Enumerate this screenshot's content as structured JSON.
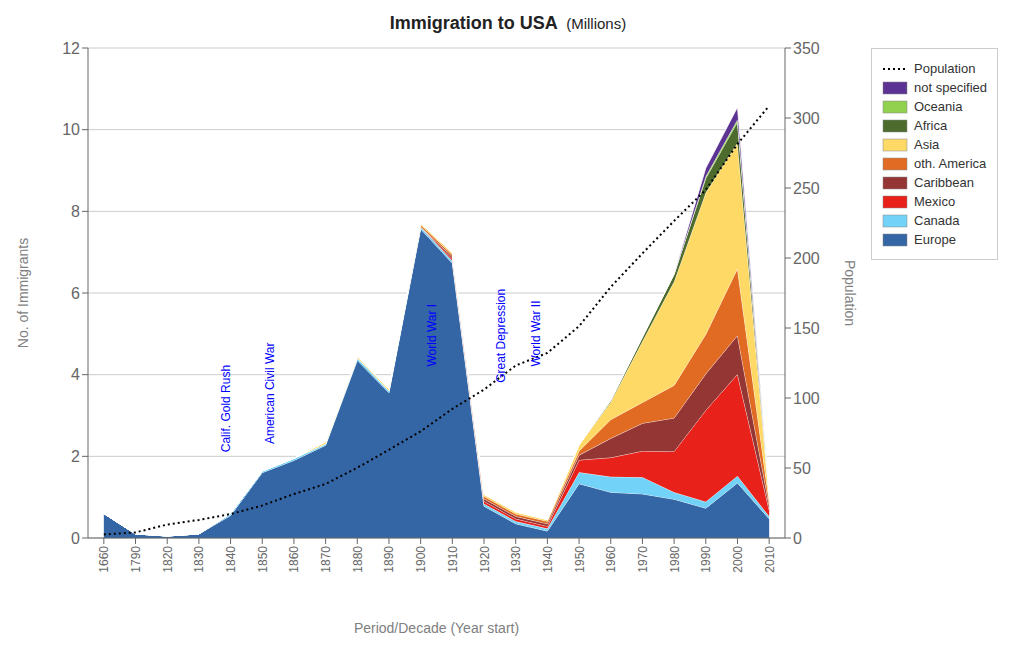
{
  "chart_data": {
    "type": "area",
    "stacked": true,
    "title": "Immigration to USA",
    "subtitle": "(Millions)",
    "xlabel": "Period/Decade (Year start)",
    "ylabel": "No. of Immigrants",
    "y2label": "Population",
    "categories": [
      "1660",
      "1790",
      "1820",
      "1830",
      "1840",
      "1850",
      "1860",
      "1870",
      "1880",
      "1890",
      "1900",
      "1910",
      "1920",
      "1930",
      "1940",
      "1950",
      "1960",
      "1970",
      "1980",
      "1990",
      "2000",
      "2010"
    ],
    "ylim": [
      0,
      12
    ],
    "yticks": [
      0,
      2,
      4,
      6,
      8,
      10,
      12
    ],
    "y2lim": [
      0,
      350
    ],
    "y2ticks": [
      0,
      50,
      100,
      150,
      200,
      250,
      300,
      350
    ],
    "grid": true,
    "legend": "right",
    "series": [
      {
        "name": "Europe",
        "color": "#3465a4",
        "values": [
          0.6,
          0.1,
          0.05,
          0.1,
          0.55,
          1.6,
          1.9,
          2.27,
          4.35,
          3.56,
          7.57,
          6.73,
          0.78,
          0.35,
          0.17,
          1.33,
          1.12,
          1.08,
          0.95,
          0.73,
          1.35,
          0.47
        ]
      },
      {
        "name": "Canada",
        "color": "#73d2f7",
        "values": [
          0.0,
          0.0,
          0.0,
          0.0,
          0.05,
          0.04,
          0.05,
          0.04,
          0.06,
          0.05,
          0.05,
          0.06,
          0.06,
          0.06,
          0.06,
          0.28,
          0.38,
          0.41,
          0.17,
          0.16,
          0.17,
          0.06
        ]
      },
      {
        "name": "Mexico",
        "color": "#e8211a",
        "values": [
          0.0,
          0.0,
          0.0,
          0.0,
          0.0,
          0.0,
          0.0,
          0.0,
          0.0,
          0.0,
          0.0,
          0.05,
          0.06,
          0.06,
          0.06,
          0.3,
          0.47,
          0.64,
          1.0,
          2.24,
          2.49,
          0.16
        ]
      },
      {
        "name": "Caribbean",
        "color": "#943634",
        "values": [
          0.0,
          0.0,
          0.0,
          0.0,
          0.0,
          0.0,
          0.0,
          0.0,
          0.0,
          0.0,
          0.0,
          0.05,
          0.06,
          0.06,
          0.06,
          0.12,
          0.47,
          0.68,
          0.82,
          0.89,
          0.95,
          0.1
        ]
      },
      {
        "name": "oth. America",
        "color": "#e26b24",
        "values": [
          0.0,
          0.0,
          0.0,
          0.0,
          0.0,
          0.0,
          0.0,
          0.0,
          0.0,
          0.0,
          0.05,
          0.05,
          0.06,
          0.06,
          0.06,
          0.1,
          0.46,
          0.51,
          0.8,
          0.97,
          1.64,
          0.1
        ]
      },
      {
        "name": "Asia",
        "color": "#ffd966",
        "values": [
          0.0,
          0.0,
          0.0,
          0.0,
          0.0,
          0.0,
          0.0,
          0.05,
          0.04,
          0.04,
          0.04,
          0.05,
          0.05,
          0.05,
          0.04,
          0.15,
          0.43,
          1.5,
          2.54,
          3.47,
          3.08,
          0.1
        ]
      },
      {
        "name": "Africa",
        "color": "#4e6b2e",
        "values": [
          0.0,
          0.0,
          0.0,
          0.0,
          0.0,
          0.0,
          0.0,
          0.0,
          0.0,
          0.0,
          0.0,
          0.0,
          0.0,
          0.0,
          0.0,
          0.0,
          0.04,
          0.1,
          0.18,
          0.35,
          0.51,
          0.05
        ]
      },
      {
        "name": "Oceania",
        "color": "#92d050",
        "values": [
          0.0,
          0.0,
          0.0,
          0.0,
          0.0,
          0.0,
          0.0,
          0.0,
          0.0,
          0.0,
          0.0,
          0.0,
          0.0,
          0.0,
          0.0,
          0.0,
          0.0,
          0.0,
          0.0,
          0.05,
          0.06,
          0.0
        ]
      },
      {
        "name": "not specified",
        "color": "#5c3292",
        "values": [
          0.0,
          0.0,
          0.0,
          0.0,
          0.0,
          0.0,
          0.0,
          0.0,
          0.0,
          0.0,
          0.0,
          0.0,
          0.0,
          0.0,
          0.0,
          0.0,
          0.0,
          0.0,
          0.0,
          0.2,
          0.3,
          0.0
        ]
      },
      {
        "name": "Population",
        "type": "line",
        "axis": "y2",
        "color": "#000000",
        "line_style": "dotted",
        "values": [
          2.5,
          4.0,
          9.6,
          12.9,
          17.1,
          23.2,
          31.4,
          38.6,
          50.2,
          63.0,
          76.2,
          92.2,
          106.0,
          123.2,
          132.2,
          151.3,
          179.3,
          203.3,
          226.5,
          248.7,
          281.4,
          308.7
        ]
      }
    ],
    "annotations": [
      {
        "text": "Calif. Gold Rush",
        "x": 3.7,
        "y": 2.1,
        "color": "#0000ff"
      },
      {
        "text": "American Civil War",
        "x": 5.1,
        "y": 2.3,
        "color": "#0000ff"
      },
      {
        "text": "World War I",
        "x": 10.2,
        "y": 4.2,
        "color": "#0000ff"
      },
      {
        "text": "Great Depression",
        "x": 12.4,
        "y": 3.8,
        "color": "#0000ff"
      },
      {
        "text": "World War II",
        "x": 13.5,
        "y": 4.2,
        "color": "#0000ff"
      }
    ]
  }
}
